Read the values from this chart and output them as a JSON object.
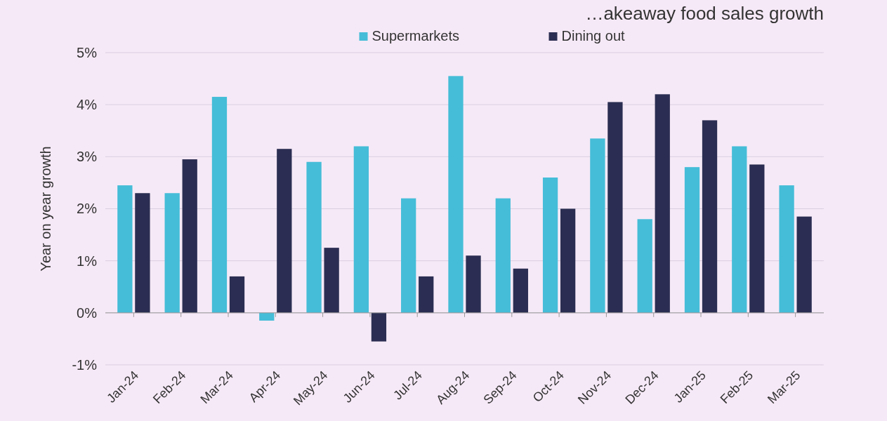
{
  "chart_data": {
    "type": "bar",
    "title": "…akeaway food sales growth",
    "ylabel": "Year on year growth",
    "categories": [
      "Jan-24",
      "Feb-24",
      "Mar-24",
      "Apr-24",
      "May-24",
      "Jun-24",
      "Jul-24",
      "Aug-24",
      "Sep-24",
      "Oct-24",
      "Nov-24",
      "Dec-24",
      "Jan-25",
      "Feb-25",
      "Mar-25"
    ],
    "series": [
      {
        "name": "Supermarkets",
        "color": "#45bdd8",
        "values": [
          2.45,
          2.3,
          4.15,
          -0.15,
          2.9,
          3.2,
          2.2,
          4.55,
          2.2,
          2.6,
          3.35,
          1.8,
          2.8,
          3.2,
          2.45
        ]
      },
      {
        "name": "Dining out",
        "color": "#2b2e52",
        "values": [
          2.3,
          2.95,
          0.7,
          3.15,
          1.25,
          -0.55,
          0.7,
          1.1,
          0.85,
          2.0,
          4.05,
          4.2,
          3.7,
          2.85,
          1.85
        ]
      }
    ],
    "ylim": [
      -1,
      5
    ],
    "yticks": [
      {
        "value": -1,
        "label": "-1%"
      },
      {
        "value": 0,
        "label": "0%"
      },
      {
        "value": 1,
        "label": "1%"
      },
      {
        "value": 2,
        "label": "2%"
      },
      {
        "value": 3,
        "label": "3%"
      },
      {
        "value": 4,
        "label": "4%"
      },
      {
        "value": 5,
        "label": "5%"
      }
    ],
    "ref_lines": [
      {
        "axis": "y",
        "value": 0,
        "color": "#999999"
      }
    ],
    "grid": "y",
    "legend": "top"
  }
}
